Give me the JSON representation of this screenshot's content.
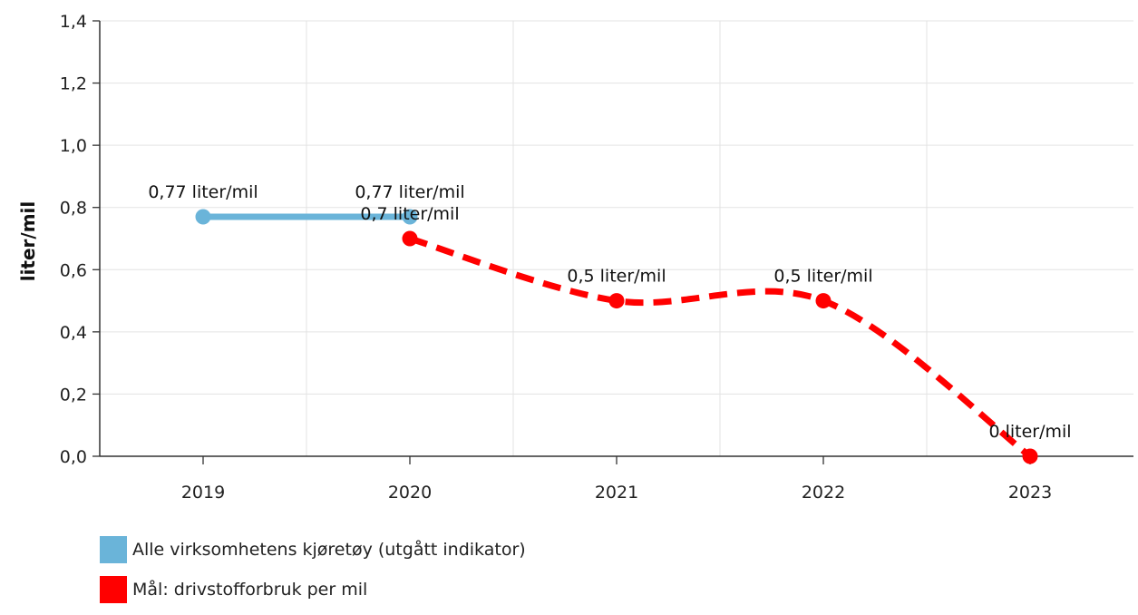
{
  "chart_data": {
    "type": "line",
    "title": "",
    "ylabel": "liter/mil",
    "xlabel": "",
    "categories": [
      "2019",
      "2020",
      "2021",
      "2022",
      "2023"
    ],
    "ylim": [
      0,
      1.4
    ],
    "yticks": [
      "0,0",
      "0,2",
      "0,4",
      "0,6",
      "0,8",
      "1,0",
      "1,2",
      "1,4"
    ],
    "grid": true,
    "legend_position": "bottom-left",
    "series": [
      {
        "name": "Alle virksomhetens kjøretøy (utgått indikator)",
        "color": "#6ab4d9",
        "style": "solid",
        "x": [
          "2019",
          "2020"
        ],
        "values": [
          0.77,
          0.77
        ],
        "labels": [
          "0,77 liter/mil",
          "0,77 liter/mil"
        ]
      },
      {
        "name": "Mål: drivstofforbruk per mil",
        "color": "#ff0000",
        "style": "dashed",
        "x": [
          "2020",
          "2021",
          "2022",
          "2023"
        ],
        "values": [
          0.7,
          0.5,
          0.5,
          0
        ],
        "labels": [
          "0,7 liter/mil",
          "0,5 liter/mil",
          "0,5 liter/mil",
          "0 liter/mil"
        ]
      }
    ]
  }
}
